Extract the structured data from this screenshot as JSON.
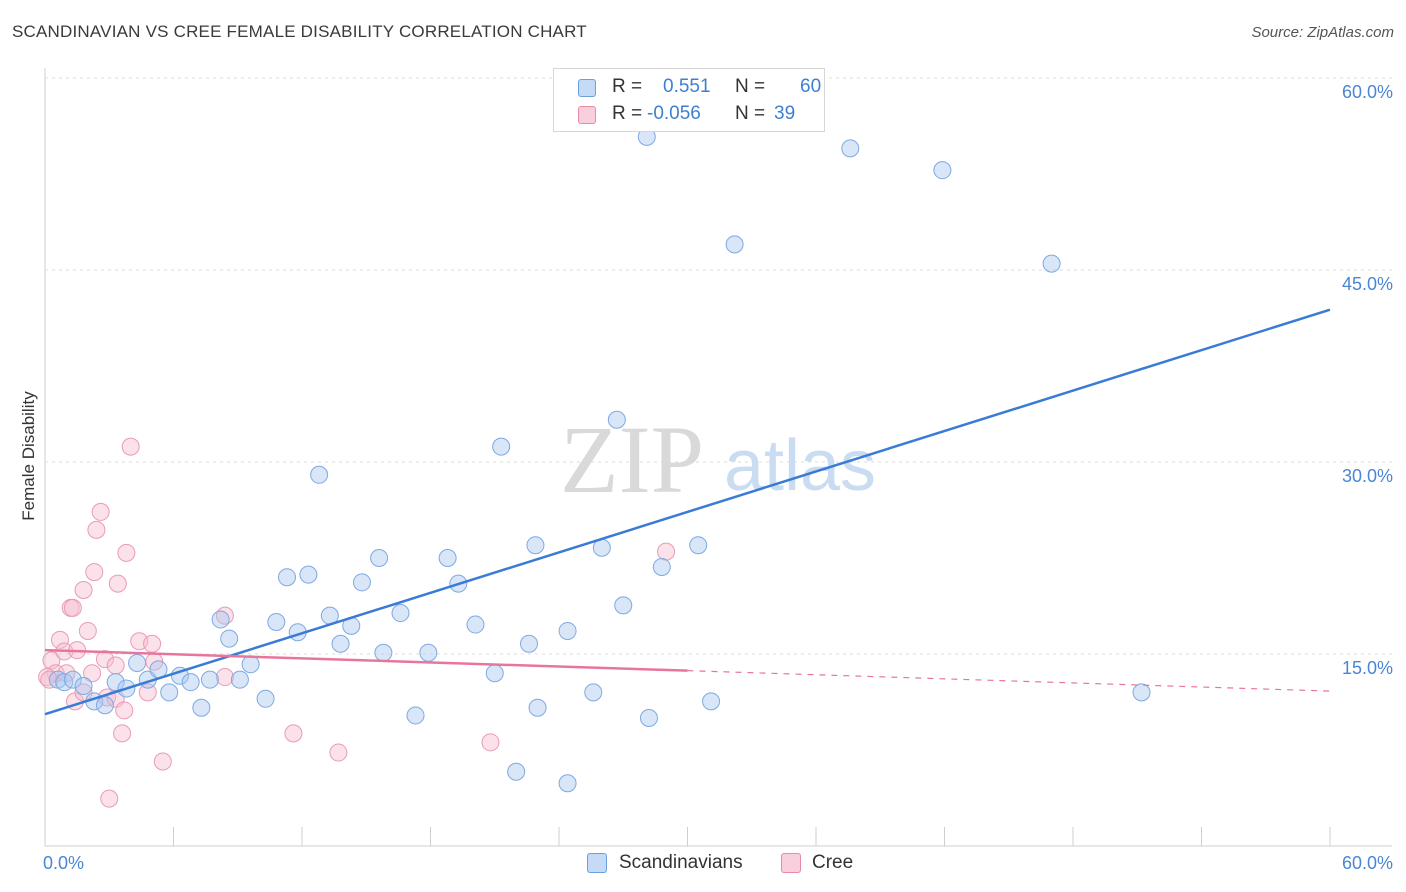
{
  "title": "SCANDINAVIAN VS CREE FEMALE DISABILITY CORRELATION CHART",
  "source": "Source: ZipAtlas.com",
  "watermark": {
    "zip": "ZIP",
    "atlas": "atlas"
  },
  "legend": {
    "rows": [
      {
        "r_label": "R =",
        "r_value": "0.551",
        "n_label": "N =",
        "n_value": "60",
        "color": "#a9c8f0",
        "border": "#6a9fe0"
      },
      {
        "r_label": "R =",
        "r_value": "-0.056",
        "n_label": "N =",
        "n_value": "39",
        "color": "#f6bcd0",
        "border": "#e88aa8"
      }
    ]
  },
  "bottom_legend": [
    {
      "label": "Scandinavians",
      "color": "#a9c8f0",
      "border": "#6a9fe0"
    },
    {
      "label": "Cree",
      "color": "#f6bcd0",
      "border": "#e88aa8"
    }
  ],
  "colors": {
    "blue": "#3a7bd5",
    "pink": "#e8769c",
    "grid": "#dddddd",
    "axis_text": "#4a86d4"
  },
  "chart_data": {
    "type": "scatter",
    "title": "SCANDINAVIAN VS CREE FEMALE DISABILITY CORRELATION CHART",
    "xlabel": "",
    "ylabel": "Female Disability",
    "xlim": [
      0,
      60
    ],
    "ylim": [
      0,
      60
    ],
    "x_tick_labels": [
      "0.0%",
      "60.0%"
    ],
    "y_ticks": [
      15,
      30,
      45,
      60
    ],
    "y_tick_labels": [
      "15.0%",
      "30.0%",
      "45.0%",
      "60.0%"
    ],
    "series": [
      {
        "name": "Scandinavians",
        "r": 0.551,
        "n": 60,
        "trend": {
          "x0": 0,
          "y0": 10.3,
          "x1": 60,
          "y1": 41.9
        },
        "points": [
          [
            0.6,
            13.0
          ],
          [
            0.9,
            12.8
          ],
          [
            1.3,
            13.0
          ],
          [
            1.8,
            12.5
          ],
          [
            2.3,
            11.3
          ],
          [
            2.8,
            11.0
          ],
          [
            3.3,
            12.8
          ],
          [
            3.8,
            12.3
          ],
          [
            4.3,
            14.3
          ],
          [
            4.8,
            13.0
          ],
          [
            5.3,
            13.8
          ],
          [
            5.8,
            12.0
          ],
          [
            6.3,
            13.3
          ],
          [
            6.8,
            12.8
          ],
          [
            7.3,
            10.8
          ],
          [
            7.7,
            13.0
          ],
          [
            8.2,
            17.7
          ],
          [
            8.6,
            16.2
          ],
          [
            9.1,
            13.0
          ],
          [
            9.6,
            14.2
          ],
          [
            10.3,
            11.5
          ],
          [
            10.8,
            17.5
          ],
          [
            11.3,
            21.0
          ],
          [
            11.8,
            16.7
          ],
          [
            12.3,
            21.2
          ],
          [
            12.8,
            29.0
          ],
          [
            13.3,
            18.0
          ],
          [
            13.8,
            15.8
          ],
          [
            14.3,
            17.2
          ],
          [
            14.8,
            20.6
          ],
          [
            15.6,
            22.5
          ],
          [
            15.8,
            15.1
          ],
          [
            16.6,
            18.2
          ],
          [
            17.3,
            10.2
          ],
          [
            17.9,
            15.1
          ],
          [
            18.8,
            22.5
          ],
          [
            19.3,
            20.5
          ],
          [
            20.1,
            17.3
          ],
          [
            21.0,
            13.5
          ],
          [
            21.3,
            31.2
          ],
          [
            22.0,
            5.8
          ],
          [
            22.6,
            15.8
          ],
          [
            22.9,
            23.5
          ],
          [
            23.0,
            10.8
          ],
          [
            24.4,
            16.8
          ],
          [
            24.4,
            4.9
          ],
          [
            25.6,
            12.0
          ],
          [
            26.0,
            23.3
          ],
          [
            26.7,
            33.3
          ],
          [
            27.0,
            18.8
          ],
          [
            28.1,
            55.4
          ],
          [
            28.2,
            10.0
          ],
          [
            28.8,
            21.8
          ],
          [
            30.5,
            23.5
          ],
          [
            31.1,
            11.3
          ],
          [
            32.2,
            47.0
          ],
          [
            37.6,
            54.5
          ],
          [
            41.9,
            52.8
          ],
          [
            47.0,
            45.5
          ],
          [
            51.2,
            12.0
          ]
        ]
      },
      {
        "name": "Cree",
        "r": -0.056,
        "n": 39,
        "trend": {
          "x0": 0,
          "y0": 15.3,
          "x1": 30,
          "y1": 13.7
        },
        "trend_dashed": {
          "x0": 30,
          "y0": 13.7,
          "x1": 60,
          "y1": 12.1
        },
        "points": [
          [
            0.3,
            14.5
          ],
          [
            0.5,
            13.5
          ],
          [
            0.7,
            16.1
          ],
          [
            0.9,
            15.2
          ],
          [
            1.0,
            13.5
          ],
          [
            1.2,
            18.6
          ],
          [
            1.3,
            18.6
          ],
          [
            1.4,
            11.3
          ],
          [
            1.5,
            15.3
          ],
          [
            1.8,
            12.0
          ],
          [
            1.8,
            20.0
          ],
          [
            2.0,
            16.8
          ],
          [
            2.2,
            13.5
          ],
          [
            2.3,
            21.4
          ],
          [
            2.4,
            24.7
          ],
          [
            2.6,
            26.1
          ],
          [
            2.8,
            14.6
          ],
          [
            2.9,
            11.6
          ],
          [
            3.0,
            3.7
          ],
          [
            3.3,
            11.5
          ],
          [
            3.3,
            14.1
          ],
          [
            3.4,
            20.5
          ],
          [
            3.6,
            8.8
          ],
          [
            3.7,
            10.6
          ],
          [
            3.8,
            22.9
          ],
          [
            4.0,
            31.2
          ],
          [
            4.4,
            16.0
          ],
          [
            4.8,
            12.0
          ],
          [
            5.0,
            15.8
          ],
          [
            5.1,
            14.4
          ],
          [
            5.5,
            6.6
          ],
          [
            8.4,
            18.0
          ],
          [
            8.4,
            13.2
          ],
          [
            11.6,
            8.8
          ],
          [
            13.7,
            7.3
          ],
          [
            20.8,
            8.1
          ],
          [
            29.0,
            23.0
          ],
          [
            0.1,
            13.2
          ],
          [
            0.2,
            13.0
          ]
        ]
      }
    ]
  }
}
